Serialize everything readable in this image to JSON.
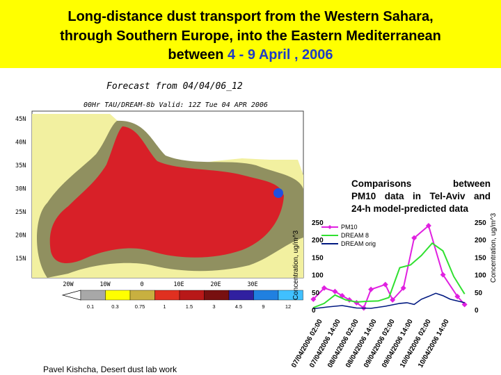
{
  "title": {
    "line1": "Long-distance dust transport from the Western Sahara,",
    "line2": "through Southern Europe, into the Eastern Mediterranean",
    "line3_prefix": "between ",
    "line3_dates": "4 - 9 April , 2006"
  },
  "map": {
    "heading": "Forecast from 04/04/06_12",
    "subheading": "00Hr TAU/DREAM-8b Valid: 12Z Tue 04 APR 2006",
    "lat_labels": [
      "45N",
      "40N",
      "35N",
      "30N",
      "25N",
      "20N",
      "15N"
    ],
    "lon_labels": [
      "20W",
      "10W",
      "0",
      "10E",
      "20E",
      "30E"
    ],
    "colorbar_values": [
      "0.1",
      "0.3",
      "0.75",
      "1",
      "1.5",
      "3",
      "4.5",
      "9",
      "12"
    ],
    "colorbar_colors": [
      "#a8a8a8",
      "#ffff00",
      "#c8b040",
      "#e03020",
      "#b81818",
      "#781010",
      "#3020a0",
      "#2080e0",
      "#40c0ff"
    ],
    "colors": {
      "land": "#f2f0a0",
      "sea_dust": "#e8a0a8",
      "dust_mid": "#909060",
      "dust_high": "#d82028",
      "marker": "#2050e0"
    }
  },
  "note": {
    "line1": "Comparisons between",
    "line2": "PM10 data in Tel-Aviv and",
    "line3": "24-h model-predicted data"
  },
  "chart_data": {
    "type": "line",
    "categories": [
      "07/04/2006 02:00",
      "07/04/2006 14:00",
      "08/04/2006 02:00",
      "08/04/2006 14:00",
      "09/04/2006 02:00",
      "09/04/2006 14:00",
      "10/04/2006 02:00",
      "10/04/2006 14:00"
    ],
    "x_index": [
      0,
      0.75,
      1.5,
      2.25,
      3.0,
      3.75,
      4.5,
      5.25,
      6.0,
      6.75,
      7.5,
      8.25,
      9.0,
      9.75,
      10.5,
      11.25,
      12.0,
      12.75,
      13.5,
      14.25,
      15.0,
      15.75,
      16.5,
      17.25,
      18.0,
      18.75,
      19.5,
      20.25,
      21.0
    ],
    "series": [
      {
        "name": "PM10",
        "color": "#e020e0",
        "points": [
          [
            0,
            30
          ],
          [
            1.5,
            62
          ],
          [
            3,
            52
          ],
          [
            4,
            40
          ],
          [
            5,
            28
          ],
          [
            6,
            20
          ],
          [
            7,
            5
          ],
          [
            8,
            58
          ],
          [
            10,
            72
          ],
          [
            11,
            28
          ],
          [
            12.5,
            62
          ],
          [
            14,
            205
          ],
          [
            16,
            240
          ],
          [
            18,
            100
          ],
          [
            20,
            38
          ],
          [
            21,
            15
          ]
        ]
      },
      {
        "name": "DREAM 8",
        "color": "#30e030",
        "points": [
          [
            0,
            6
          ],
          [
            1.5,
            18
          ],
          [
            3,
            42
          ],
          [
            4.5,
            28
          ],
          [
            6,
            22
          ],
          [
            7.5,
            24
          ],
          [
            9,
            25
          ],
          [
            10.5,
            35
          ],
          [
            12,
            120
          ],
          [
            13.5,
            128
          ],
          [
            15,
            155
          ],
          [
            16.5,
            190
          ],
          [
            18,
            168
          ],
          [
            19.5,
            95
          ],
          [
            21,
            45
          ]
        ]
      },
      {
        "name": "DREAM orig",
        "color": "#001880",
        "points": [
          [
            0,
            3
          ],
          [
            2,
            8
          ],
          [
            4,
            12
          ],
          [
            6,
            5
          ],
          [
            8,
            4
          ],
          [
            10,
            10
          ],
          [
            12,
            18
          ],
          [
            13,
            20
          ],
          [
            14,
            15
          ],
          [
            15,
            30
          ],
          [
            16,
            38
          ],
          [
            17,
            47
          ],
          [
            18,
            40
          ],
          [
            19,
            30
          ],
          [
            20,
            25
          ],
          [
            21,
            20
          ]
        ]
      }
    ],
    "ylabel_left": "Concentration, ug/m^3",
    "ylabel_right": "Concentration, ug/m^3",
    "yticks": [
      0,
      50,
      100,
      150,
      200,
      250
    ],
    "ylim": [
      0,
      250
    ],
    "xlim": [
      -1,
      22
    ],
    "grid": false,
    "legend": "top-left"
  },
  "footer": "Pavel Kishcha,  Desert dust lab work"
}
